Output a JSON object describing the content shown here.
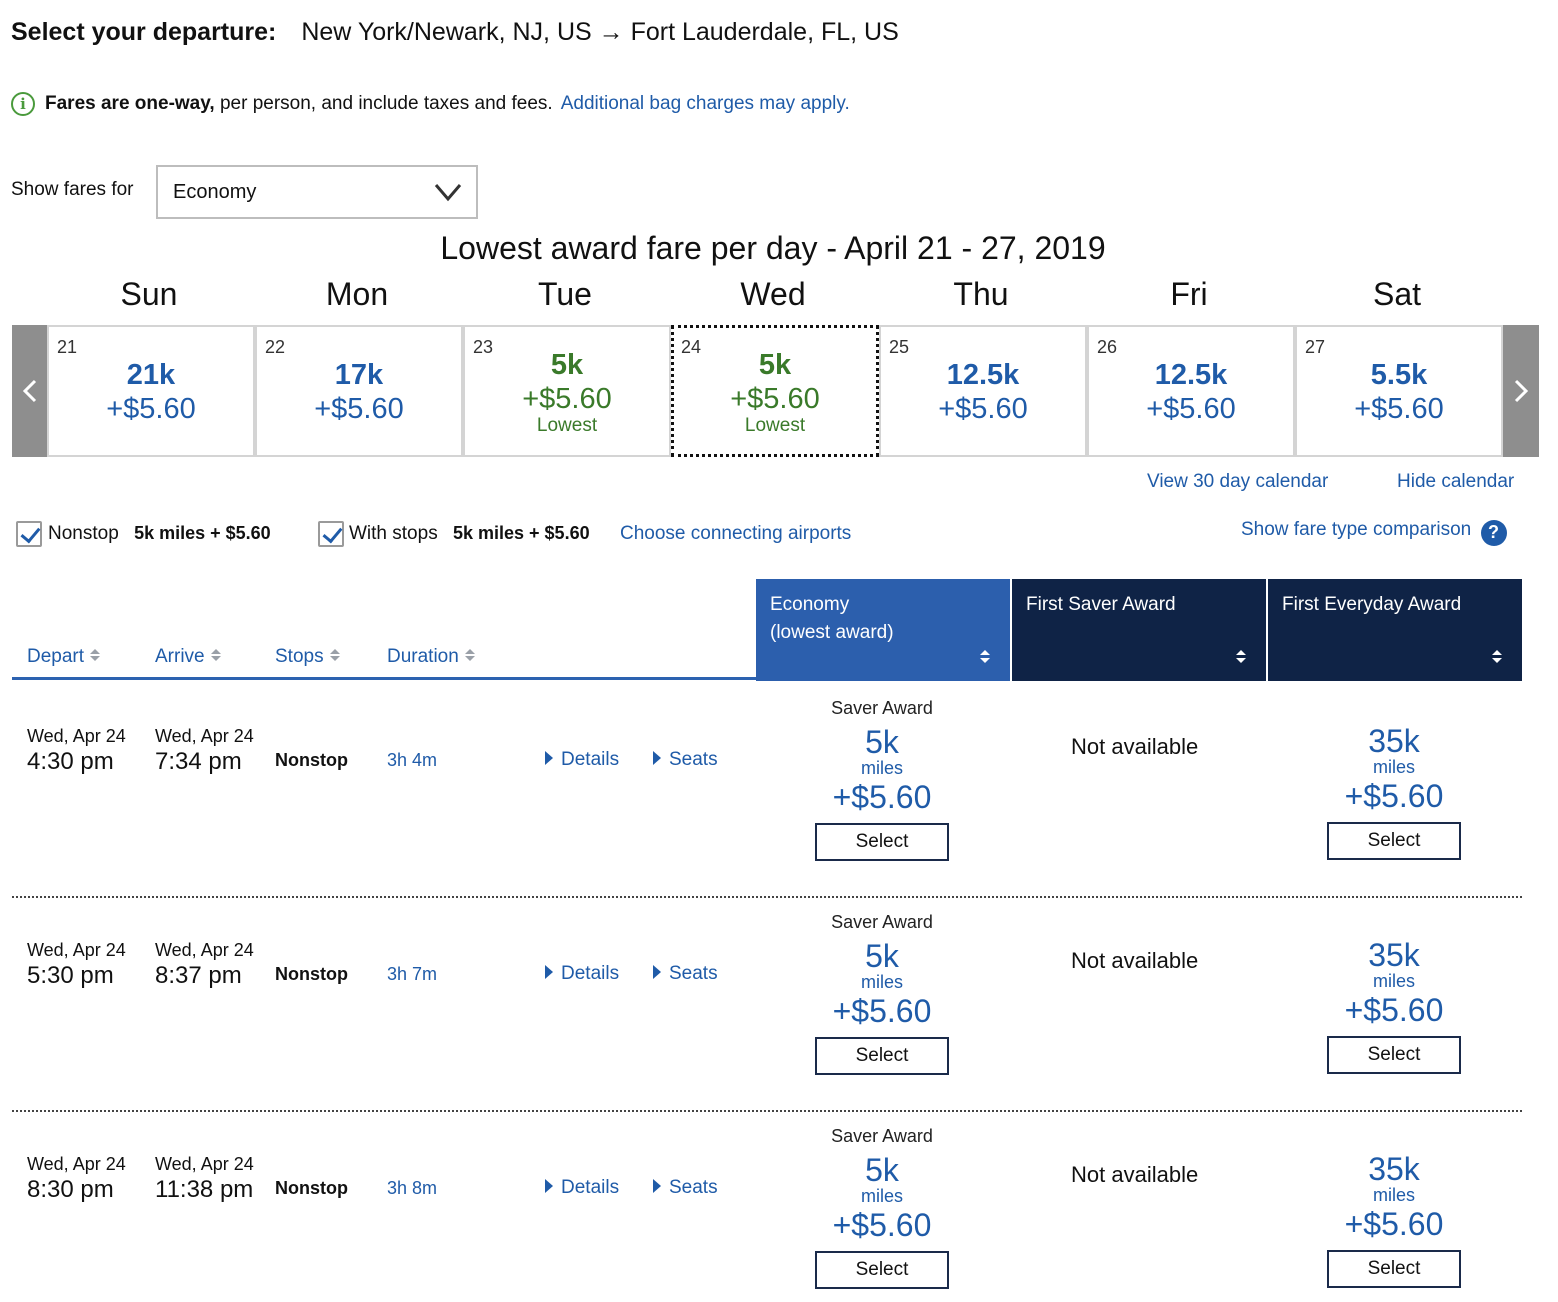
{
  "header": {
    "label": "Select your departure:",
    "route": "New York/Newark, NJ, US → Fort Lauderdale, FL, US"
  },
  "note": {
    "bold": "Fares are one-way,",
    "rest": " per person, and include taxes and fees.",
    "link": "Additional bag charges may apply."
  },
  "fare_filter": {
    "label": "Show fares for",
    "selected": "Economy"
  },
  "calendar": {
    "title": "Lowest award fare per day - April 21 - 27, 2019",
    "days": [
      {
        "dow": "Sun",
        "date": "21",
        "miles": "21k",
        "tax": "+$5.60",
        "note": ""
      },
      {
        "dow": "Mon",
        "date": "22",
        "miles": "17k",
        "tax": "+$5.60",
        "note": ""
      },
      {
        "dow": "Tue",
        "date": "23",
        "miles": "5k",
        "tax": "+$5.60",
        "note": "Lowest"
      },
      {
        "dow": "Wed",
        "date": "24",
        "miles": "5k",
        "tax": "+$5.60",
        "note": "Lowest"
      },
      {
        "dow": "Thu",
        "date": "25",
        "miles": "12.5k",
        "tax": "+$5.60",
        "note": ""
      },
      {
        "dow": "Fri",
        "date": "26",
        "miles": "12.5k",
        "tax": "+$5.60",
        "note": ""
      },
      {
        "dow": "Sat",
        "date": "27",
        "miles": "5.5k",
        "tax": "+$5.60",
        "note": ""
      }
    ],
    "view30": "View 30 day calendar",
    "hide": "Hide calendar"
  },
  "filters": {
    "nonstop_label": "Nonstop",
    "nonstop_price": "5k miles + $5.60",
    "stops_label": "With stops",
    "stops_price": "5k miles + $5.60",
    "connecting": "Choose connecting airports",
    "comparison": "Show fare type comparison"
  },
  "columns": {
    "depart": "Depart",
    "arrive": "Arrive",
    "stops": "Stops",
    "duration": "Duration",
    "economy_line1": "Economy",
    "economy_line2": "(lowest award)",
    "first_saver": "First Saver Award",
    "first_everyday": "First Everyday Award"
  },
  "colors": {
    "link_blue": "#1f5ba8",
    "economy_header": "#2c5fad",
    "first_header": "#0f2346",
    "lowest_green": "#3a7a2a"
  },
  "flights": [
    {
      "depart_date": "Wed, Apr 24",
      "depart_time": "4:30 pm",
      "arrive_date": "Wed, Apr 24",
      "arrive_time": "7:34 pm",
      "stops": "Nonstop",
      "duration": "3h 4m",
      "details": "Details",
      "seats": "Seats",
      "economy": {
        "type": "Saver Award",
        "miles": "5k",
        "miles_label": "miles",
        "tax": "+$5.60",
        "button": "Select"
      },
      "first_saver": "Not available",
      "first_everyday": {
        "miles": "35k",
        "miles_label": "miles",
        "tax": "+$5.60",
        "button": "Select"
      }
    },
    {
      "depart_date": "Wed, Apr 24",
      "depart_time": "5:30 pm",
      "arrive_date": "Wed, Apr 24",
      "arrive_time": "8:37 pm",
      "stops": "Nonstop",
      "duration": "3h 7m",
      "details": "Details",
      "seats": "Seats",
      "economy": {
        "type": "Saver Award",
        "miles": "5k",
        "miles_label": "miles",
        "tax": "+$5.60",
        "button": "Select"
      },
      "first_saver": "Not available",
      "first_everyday": {
        "miles": "35k",
        "miles_label": "miles",
        "tax": "+$5.60",
        "button": "Select"
      }
    },
    {
      "depart_date": "Wed, Apr 24",
      "depart_time": "8:30 pm",
      "arrive_date": "Wed, Apr 24",
      "arrive_time": "11:38 pm",
      "stops": "Nonstop",
      "duration": "3h 8m",
      "details": "Details",
      "seats": "Seats",
      "economy": {
        "type": "Saver Award",
        "miles": "5k",
        "miles_label": "miles",
        "tax": "+$5.60",
        "button": "Select"
      },
      "first_saver": "Not available",
      "first_everyday": {
        "miles": "35k",
        "miles_label": "miles",
        "tax": "+$5.60",
        "button": "Select"
      }
    }
  ]
}
